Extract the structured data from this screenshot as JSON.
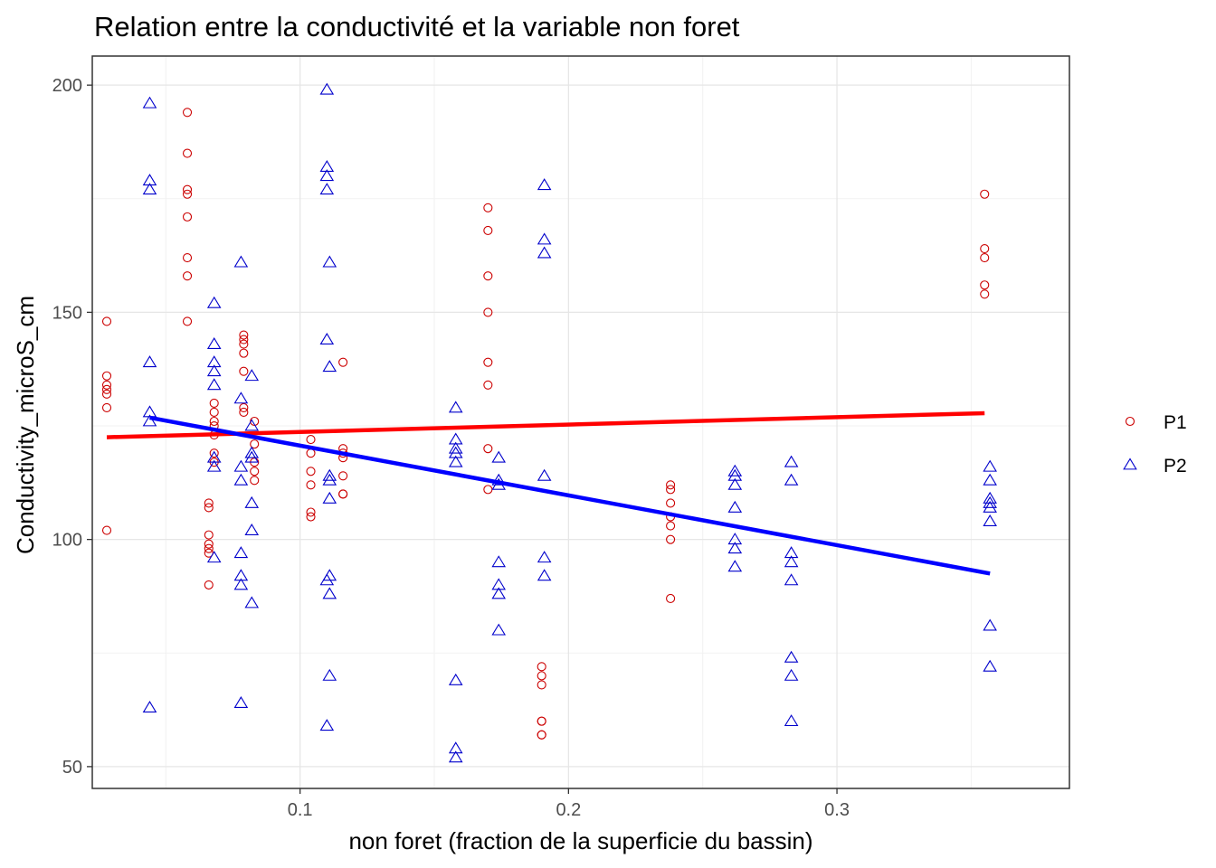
{
  "chart_data": {
    "type": "scatter",
    "title": "Relation entre la conductivité et la variable non foret",
    "xlabel": "non foret (fraction de la superficie du bassin)",
    "ylabel": "Conductivity_microS_cm",
    "xlim": [
      0.0226,
      0.3866
    ],
    "ylim": [
      45.2,
      206.4
    ],
    "x_ticks": [
      0.1,
      0.2,
      0.3
    ],
    "x_tick_labels": [
      "0.1",
      "0.2",
      "0.3"
    ],
    "y_ticks": [
      50,
      100,
      150,
      200
    ],
    "y_tick_labels": [
      "50",
      "100",
      "150",
      "200"
    ],
    "grid": true,
    "legend_position": "right",
    "series": [
      {
        "name": "P1",
        "color": "#cc0000",
        "marker": "circle",
        "points": [
          [
            0.028,
            148
          ],
          [
            0.028,
            136
          ],
          [
            0.028,
            134
          ],
          [
            0.028,
            133
          ],
          [
            0.028,
            132
          ],
          [
            0.028,
            129
          ],
          [
            0.028,
            102
          ],
          [
            0.058,
            194
          ],
          [
            0.058,
            185
          ],
          [
            0.058,
            177
          ],
          [
            0.058,
            176
          ],
          [
            0.058,
            171
          ],
          [
            0.058,
            162
          ],
          [
            0.058,
            158
          ],
          [
            0.058,
            148
          ],
          [
            0.066,
            108
          ],
          [
            0.066,
            107
          ],
          [
            0.066,
            101
          ],
          [
            0.066,
            99
          ],
          [
            0.066,
            98
          ],
          [
            0.066,
            97
          ],
          [
            0.066,
            90
          ],
          [
            0.068,
            130
          ],
          [
            0.068,
            128
          ],
          [
            0.068,
            126
          ],
          [
            0.068,
            125
          ],
          [
            0.068,
            123
          ],
          [
            0.068,
            119
          ],
          [
            0.068,
            117
          ],
          [
            0.079,
            145
          ],
          [
            0.079,
            144
          ],
          [
            0.079,
            143
          ],
          [
            0.079,
            141
          ],
          [
            0.079,
            137
          ],
          [
            0.079,
            129
          ],
          [
            0.079,
            128
          ],
          [
            0.083,
            126
          ],
          [
            0.083,
            121
          ],
          [
            0.083,
            117
          ],
          [
            0.083,
            115
          ],
          [
            0.083,
            113
          ],
          [
            0.104,
            122
          ],
          [
            0.104,
            119
          ],
          [
            0.104,
            115
          ],
          [
            0.104,
            112
          ],
          [
            0.104,
            106
          ],
          [
            0.104,
            105
          ],
          [
            0.116,
            139
          ],
          [
            0.116,
            120
          ],
          [
            0.116,
            119
          ],
          [
            0.116,
            118
          ],
          [
            0.116,
            114
          ],
          [
            0.116,
            110
          ],
          [
            0.116,
            110
          ],
          [
            0.17,
            173
          ],
          [
            0.17,
            168
          ],
          [
            0.17,
            158
          ],
          [
            0.17,
            150
          ],
          [
            0.17,
            139
          ],
          [
            0.17,
            134
          ],
          [
            0.17,
            120
          ],
          [
            0.17,
            111
          ],
          [
            0.19,
            72
          ],
          [
            0.19,
            70
          ],
          [
            0.19,
            68
          ],
          [
            0.19,
            60
          ],
          [
            0.19,
            60
          ],
          [
            0.19,
            57
          ],
          [
            0.19,
            57
          ],
          [
            0.238,
            112
          ],
          [
            0.238,
            111
          ],
          [
            0.238,
            108
          ],
          [
            0.238,
            105
          ],
          [
            0.238,
            103
          ],
          [
            0.238,
            100
          ],
          [
            0.238,
            87
          ],
          [
            0.355,
            176
          ],
          [
            0.355,
            164
          ],
          [
            0.355,
            162
          ],
          [
            0.355,
            156
          ],
          [
            0.355,
            154
          ]
        ]
      },
      {
        "name": "P2",
        "color": "#0000cc",
        "marker": "triangle",
        "points": [
          [
            0.044,
            196
          ],
          [
            0.044,
            179
          ],
          [
            0.044,
            177
          ],
          [
            0.044,
            139
          ],
          [
            0.044,
            128
          ],
          [
            0.044,
            126
          ],
          [
            0.044,
            63
          ],
          [
            0.068,
            152
          ],
          [
            0.068,
            143
          ],
          [
            0.068,
            139
          ],
          [
            0.068,
            137
          ],
          [
            0.068,
            134
          ],
          [
            0.068,
            118
          ],
          [
            0.068,
            116
          ],
          [
            0.068,
            96
          ],
          [
            0.078,
            161
          ],
          [
            0.078,
            131
          ],
          [
            0.078,
            116
          ],
          [
            0.078,
            113
          ],
          [
            0.078,
            97
          ],
          [
            0.078,
            92
          ],
          [
            0.078,
            90
          ],
          [
            0.078,
            64
          ],
          [
            0.082,
            136
          ],
          [
            0.082,
            125
          ],
          [
            0.082,
            119
          ],
          [
            0.082,
            118
          ],
          [
            0.082,
            108
          ],
          [
            0.082,
            102
          ],
          [
            0.082,
            86
          ],
          [
            0.11,
            199
          ],
          [
            0.11,
            182
          ],
          [
            0.11,
            180
          ],
          [
            0.11,
            177
          ],
          [
            0.11,
            144
          ],
          [
            0.11,
            91
          ],
          [
            0.11,
            59
          ],
          [
            0.111,
            161
          ],
          [
            0.111,
            138
          ],
          [
            0.111,
            114
          ],
          [
            0.111,
            113
          ],
          [
            0.111,
            109
          ],
          [
            0.111,
            92
          ],
          [
            0.111,
            88
          ],
          [
            0.111,
            70
          ],
          [
            0.158,
            129
          ],
          [
            0.158,
            122
          ],
          [
            0.158,
            120
          ],
          [
            0.158,
            119
          ],
          [
            0.158,
            117
          ],
          [
            0.158,
            69
          ],
          [
            0.158,
            54
          ],
          [
            0.158,
            52
          ],
          [
            0.174,
            118
          ],
          [
            0.174,
            113
          ],
          [
            0.174,
            112
          ],
          [
            0.174,
            95
          ],
          [
            0.174,
            90
          ],
          [
            0.174,
            88
          ],
          [
            0.174,
            80
          ],
          [
            0.191,
            178
          ],
          [
            0.191,
            166
          ],
          [
            0.191,
            163
          ],
          [
            0.191,
            114
          ],
          [
            0.191,
            96
          ],
          [
            0.191,
            92
          ],
          [
            0.262,
            115
          ],
          [
            0.262,
            114
          ],
          [
            0.262,
            112
          ],
          [
            0.262,
            107
          ],
          [
            0.262,
            100
          ],
          [
            0.262,
            98
          ],
          [
            0.262,
            94
          ],
          [
            0.283,
            117
          ],
          [
            0.283,
            113
          ],
          [
            0.283,
            97
          ],
          [
            0.283,
            95
          ],
          [
            0.283,
            91
          ],
          [
            0.283,
            74
          ],
          [
            0.283,
            70
          ],
          [
            0.283,
            60
          ],
          [
            0.357,
            116
          ],
          [
            0.357,
            113
          ],
          [
            0.357,
            109
          ],
          [
            0.357,
            108
          ],
          [
            0.357,
            107
          ],
          [
            0.357,
            104
          ],
          [
            0.357,
            81
          ],
          [
            0.357,
            72
          ]
        ]
      }
    ],
    "trend_lines": [
      {
        "series": "P1",
        "color": "#ff0000",
        "x": [
          0.028,
          0.355
        ],
        "y": [
          122.5,
          127.8
        ]
      },
      {
        "series": "P2",
        "color": "#0000ff",
        "x": [
          0.044,
          0.357
        ],
        "y": [
          126.8,
          92.5
        ]
      }
    ]
  }
}
